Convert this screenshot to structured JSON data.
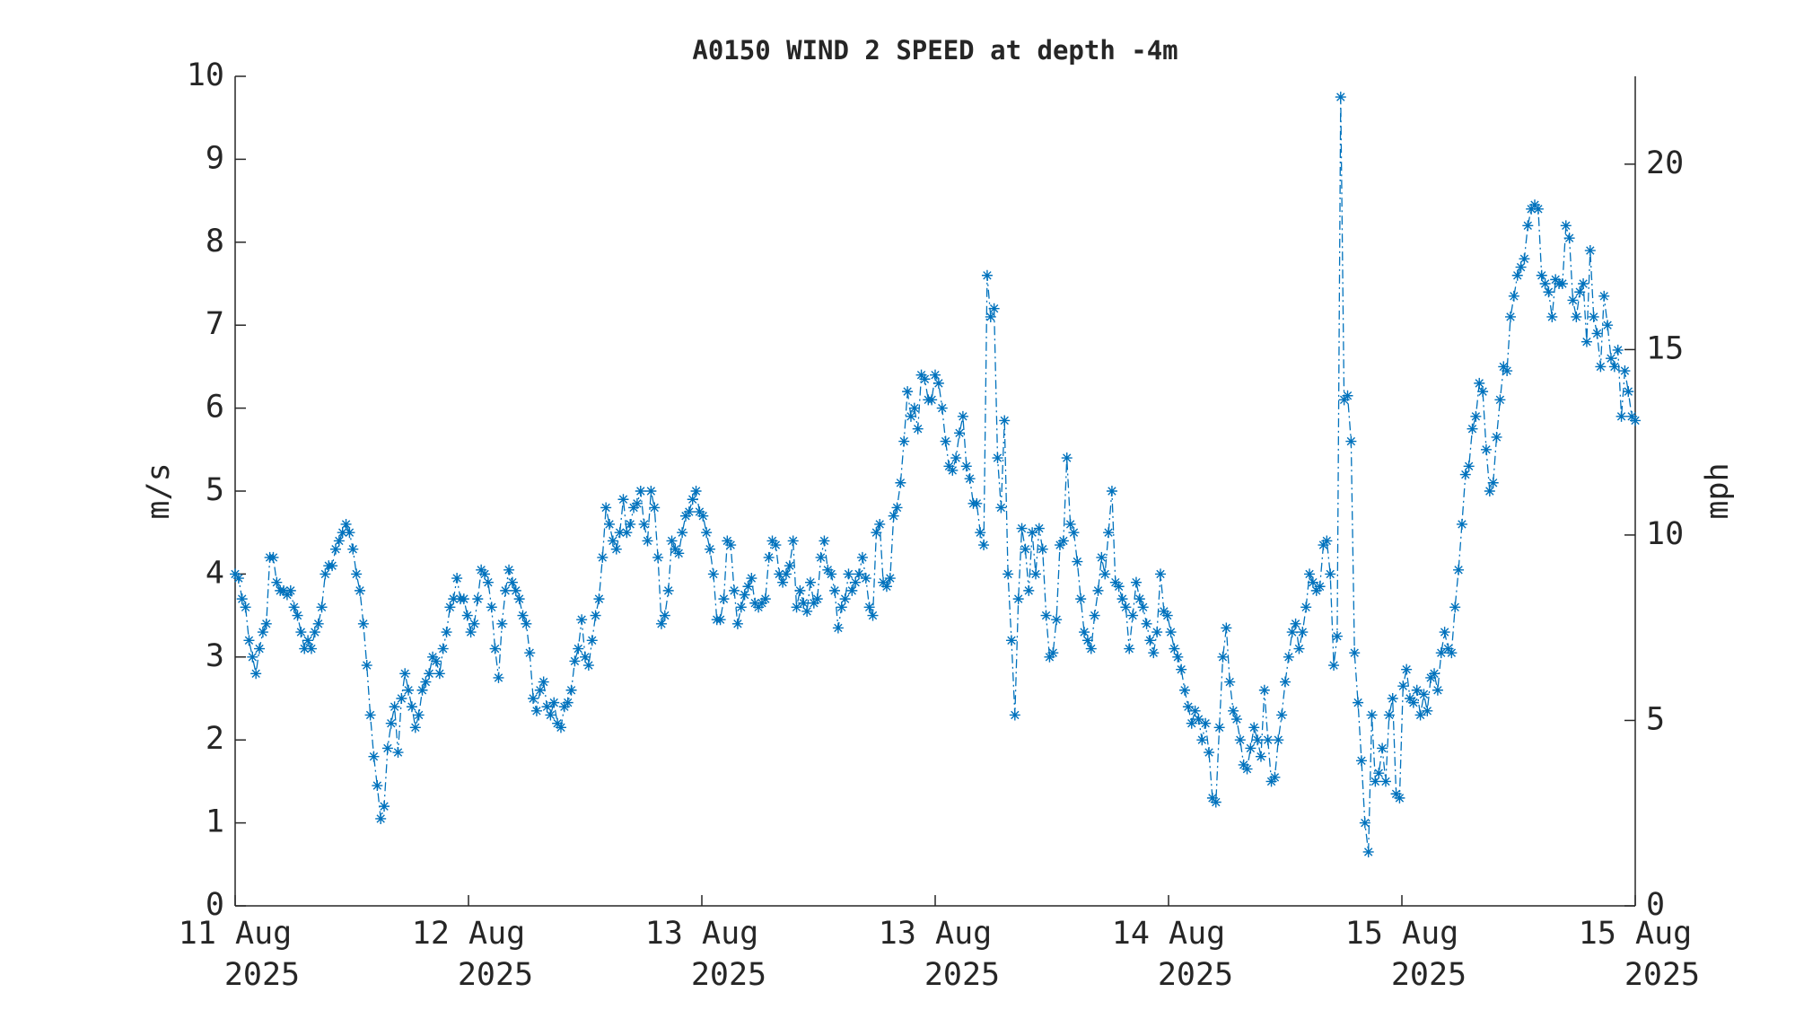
{
  "chart_data": {
    "type": "line",
    "title": "A0150 WIND 2 SPEED at depth -4m",
    "ylabel": "m/s",
    "y2label": "mph",
    "xtick_labels": [
      [
        "11 Aug",
        "2025"
      ],
      [
        "12 Aug",
        "2025"
      ],
      [
        "13 Aug",
        "2025"
      ],
      [
        "13 Aug",
        "2025"
      ],
      [
        "14 Aug",
        "2025"
      ],
      [
        "15 Aug",
        "2025"
      ],
      [
        "15 Aug",
        "2025"
      ]
    ],
    "ylim": [
      0,
      10
    ],
    "yticks": [
      0,
      1,
      2,
      3,
      4,
      5,
      6,
      7,
      8,
      9,
      10
    ],
    "y2lim": [
      0,
      22.369
    ],
    "y2ticks": [
      0,
      5,
      10,
      15,
      20
    ],
    "grid": false,
    "series": [
      {
        "name": "WIND 2 SPEED",
        "color": "#0072bd",
        "values": [
          4.0,
          3.95,
          3.7,
          3.6,
          3.2,
          3.0,
          2.8,
          3.1,
          3.3,
          3.4,
          4.2,
          4.2,
          3.9,
          3.8,
          3.8,
          3.75,
          3.8,
          3.6,
          3.5,
          3.3,
          3.1,
          3.2,
          3.1,
          3.3,
          3.4,
          3.6,
          4.0,
          4.1,
          4.1,
          4.3,
          4.4,
          4.5,
          4.6,
          4.5,
          4.3,
          4.0,
          3.8,
          3.4,
          2.9,
          2.3,
          1.8,
          1.45,
          1.05,
          1.2,
          1.9,
          2.2,
          2.4,
          1.85,
          2.5,
          2.8,
          2.6,
          2.4,
          2.15,
          2.3,
          2.6,
          2.7,
          2.8,
          3.0,
          2.95,
          2.8,
          3.1,
          3.3,
          3.6,
          3.7,
          3.95,
          3.7,
          3.7,
          3.5,
          3.3,
          3.4,
          3.7,
          4.05,
          4.0,
          3.9,
          3.6,
          3.1,
          2.75,
          3.4,
          3.8,
          4.05,
          3.9,
          3.8,
          3.7,
          3.5,
          3.4,
          3.05,
          2.5,
          2.35,
          2.6,
          2.7,
          2.4,
          2.3,
          2.45,
          2.2,
          2.15,
          2.4,
          2.45,
          2.6,
          2.95,
          3.1,
          3.45,
          3.0,
          2.9,
          3.2,
          3.5,
          3.7,
          4.2,
          4.8,
          4.6,
          4.4,
          4.3,
          4.5,
          4.9,
          4.5,
          4.6,
          4.8,
          4.85,
          5.0,
          4.6,
          4.4,
          5.0,
          4.8,
          4.2,
          3.4,
          3.5,
          3.8,
          4.4,
          4.3,
          4.25,
          4.5,
          4.7,
          4.75,
          4.9,
          5.0,
          4.75,
          4.7,
          4.5,
          4.3,
          4.0,
          3.45,
          3.45,
          3.7,
          4.4,
          4.35,
          3.8,
          3.4,
          3.6,
          3.75,
          3.85,
          3.95,
          3.65,
          3.6,
          3.65,
          3.7,
          4.2,
          4.4,
          4.35,
          4.0,
          3.9,
          4.0,
          4.1,
          4.4,
          3.6,
          3.8,
          3.65,
          3.55,
          3.9,
          3.65,
          3.7,
          4.2,
          4.4,
          4.05,
          4.0,
          3.8,
          3.35,
          3.6,
          3.7,
          4.0,
          3.8,
          3.9,
          4.0,
          4.2,
          3.95,
          3.6,
          3.5,
          4.5,
          4.6,
          3.9,
          3.85,
          3.95,
          4.7,
          4.8,
          5.1,
          5.6,
          6.2,
          5.9,
          6.0,
          5.75,
          6.4,
          6.35,
          6.1,
          6.1,
          6.4,
          6.3,
          6.0,
          5.6,
          5.3,
          5.25,
          5.4,
          5.7,
          5.9,
          5.3,
          5.15,
          4.85,
          4.85,
          4.5,
          4.35,
          7.6,
          7.1,
          7.2,
          5.4,
          4.8,
          5.85,
          4.0,
          3.2,
          2.3,
          3.7,
          4.55,
          4.3,
          3.8,
          4.5,
          4.0,
          4.55,
          4.3,
          3.5,
          3.0,
          3.05,
          3.45,
          4.35,
          4.4,
          5.4,
          4.6,
          4.5,
          4.15,
          3.7,
          3.3,
          3.2,
          3.1,
          3.5,
          3.8,
          4.2,
          4.0,
          4.5,
          5.0,
          3.9,
          3.85,
          3.7,
          3.6,
          3.1,
          3.5,
          3.9,
          3.7,
          3.6,
          3.4,
          3.2,
          3.05,
          3.3,
          4.0,
          3.55,
          3.5,
          3.3,
          3.1,
          3.0,
          2.85,
          2.6,
          2.4,
          2.2,
          2.35,
          2.25,
          2.0,
          2.2,
          1.85,
          1.3,
          1.25,
          2.15,
          3.0,
          3.35,
          2.7,
          2.35,
          2.25,
          2.0,
          1.7,
          1.65,
          1.9,
          2.15,
          2.0,
          1.8,
          2.6,
          2.0,
          1.5,
          1.55,
          2.0,
          2.3,
          2.7,
          3.0,
          3.3,
          3.4,
          3.1,
          3.3,
          3.6,
          4.0,
          3.9,
          3.8,
          3.85,
          4.35,
          4.4,
          4.0,
          2.9,
          3.25,
          9.75,
          6.1,
          6.15,
          5.6,
          3.05,
          2.45,
          1.75,
          1.0,
          0.65,
          2.3,
          1.5,
          1.6,
          1.9,
          1.5,
          2.3,
          2.5,
          1.35,
          1.3,
          2.65,
          2.85,
          2.5,
          2.45,
          2.6,
          2.3,
          2.55,
          2.35,
          2.75,
          2.8,
          2.6,
          3.05,
          3.3,
          3.1,
          3.05,
          3.6,
          4.05,
          4.6,
          5.2,
          5.3,
          5.75,
          5.9,
          6.3,
          6.2,
          5.5,
          5.0,
          5.1,
          5.65,
          6.1,
          6.5,
          6.45,
          7.1,
          7.35,
          7.6,
          7.7,
          7.8,
          8.2,
          8.4,
          8.45,
          8.4,
          7.6,
          7.5,
          7.4,
          7.1,
          7.55,
          7.5,
          7.5,
          8.2,
          8.05,
          7.3,
          7.1,
          7.4,
          7.5,
          6.8,
          7.9,
          7.1,
          6.9,
          6.5,
          7.35,
          7.0,
          6.6,
          6.5,
          6.7,
          5.9,
          6.45,
          6.2,
          5.9,
          5.85
        ]
      }
    ]
  }
}
